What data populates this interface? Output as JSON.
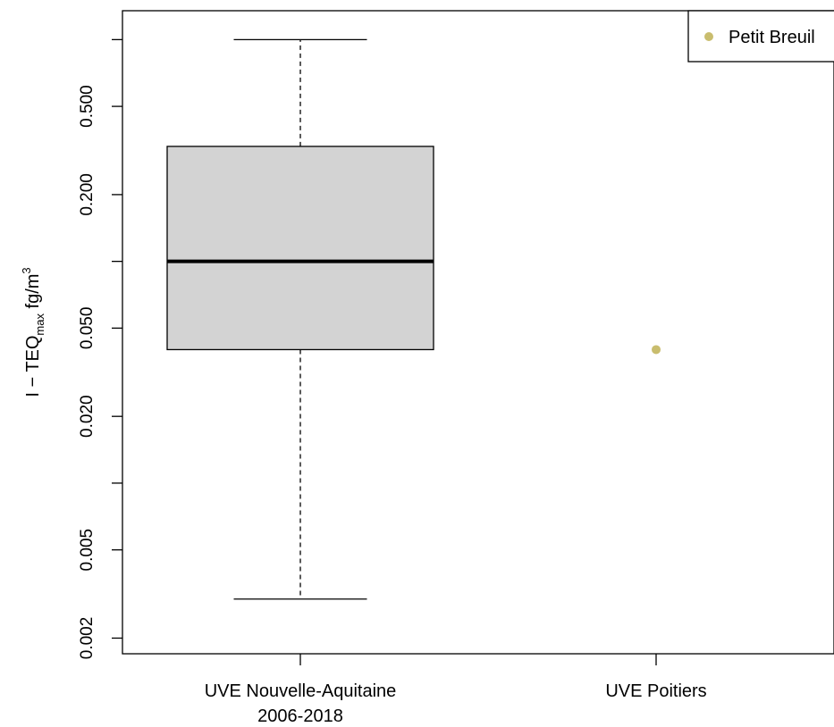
{
  "chart_data": {
    "type": "boxplot",
    "yscale": "log",
    "ylim": [
      0.0017,
      1.35
    ],
    "yticks": [
      0.002,
      0.005,
      0.01,
      0.02,
      0.05,
      0.1,
      0.2,
      0.5,
      1.0
    ],
    "ytick_labels": [
      "0.002",
      "0.005",
      "",
      "0.020",
      "0.050",
      "",
      "0.200",
      "0.500",
      ""
    ],
    "ylabel": {
      "prefix": "I − TEQ",
      "subscript": "max",
      "unit": " fg/m",
      "superscript": "3"
    },
    "categories": [
      {
        "line1": "UVE Nouvelle-Aquitaine",
        "line2": "2006-2018"
      },
      {
        "line1": "UVE Poitiers",
        "line2": ""
      }
    ],
    "boxes": [
      {
        "category_index": 0,
        "whisker_low": 0.003,
        "q1": 0.04,
        "median": 0.1,
        "q3": 0.33,
        "whisker_high": 1.0
      }
    ],
    "points": [
      {
        "category_index": 1,
        "y": 0.04,
        "name": "Petit Breuil"
      }
    ],
    "legend": {
      "placement": "top-right",
      "entries": [
        {
          "label": "Petit Breuil",
          "color": "#c9bd6e"
        }
      ]
    },
    "colors": {
      "box_fill": "#d3d3d3",
      "point": "#c9bd6e",
      "line": "#000000"
    },
    "grid": false
  }
}
